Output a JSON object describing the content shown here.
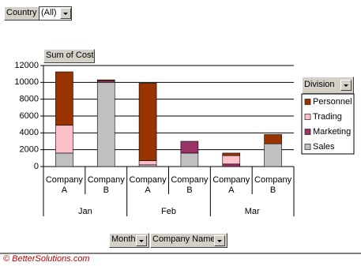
{
  "pivot": {
    "page_field": {
      "label": "Country",
      "value": "(All)"
    },
    "data_field": "Sum of Cost",
    "series_field": "Division",
    "row_fields": [
      "Month",
      "Company Name"
    ]
  },
  "footer": "© BetterSolutions.com",
  "chart_data": {
    "type": "stacked_bar",
    "categories": [
      "Company A",
      "Company B",
      "Company A",
      "Company B",
      "Company A",
      "Company B"
    ],
    "groups": [
      "Jan",
      "Feb",
      "Mar"
    ],
    "series": [
      {
        "name": "Sales",
        "color": "#c0c0c0",
        "values": [
          1600,
          10000,
          200,
          1600,
          0,
          2700
        ]
      },
      {
        "name": "Marketing",
        "color": "#993366",
        "values": [
          0,
          200,
          0,
          1400,
          300,
          0
        ]
      },
      {
        "name": "Trading",
        "color": "#ffc0cb",
        "values": [
          3300,
          0,
          500,
          0,
          1000,
          0
        ]
      },
      {
        "name": "Personnel",
        "color": "#993300",
        "values": [
          6350,
          100,
          9200,
          0,
          300,
          1100
        ]
      }
    ],
    "legend_order": [
      3,
      2,
      1,
      0
    ],
    "ylim": [
      0,
      12000
    ],
    "yticks": [
      0,
      2000,
      4000,
      6000,
      8000,
      10000,
      12000
    ],
    "grid": true
  }
}
